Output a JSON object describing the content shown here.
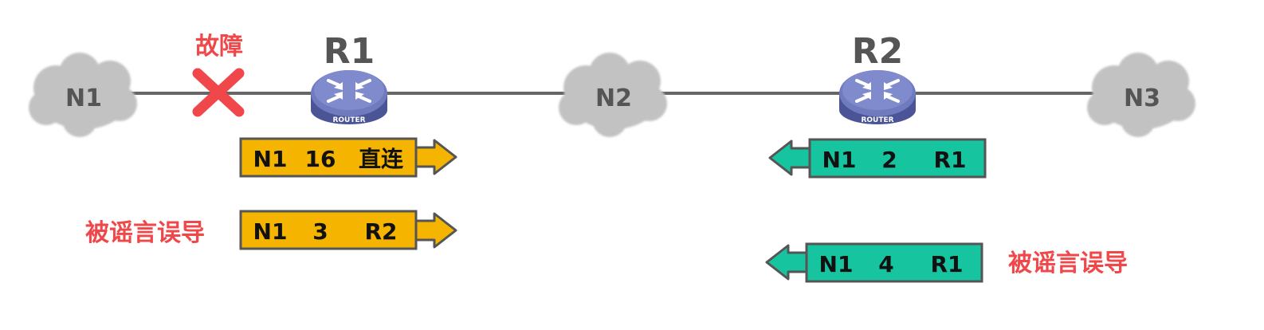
{
  "nodes": {
    "n1": "N1",
    "n2": "N2",
    "n3": "N3",
    "r1": "R1",
    "r2": "R2",
    "router_caption": "ROUTER"
  },
  "fault_label": "故障",
  "misled_label": "被谣言误导",
  "r1_tables": [
    {
      "network": "N1",
      "distance": "16",
      "next_hop": "直连"
    },
    {
      "network": "N1",
      "distance": "3",
      "next_hop": "R2"
    }
  ],
  "r2_tables": [
    {
      "network": "N1",
      "distance": "2",
      "next_hop": "R1"
    },
    {
      "network": "N1",
      "distance": "4",
      "next_hop": "R1"
    }
  ],
  "colors": {
    "line": "#666666",
    "cloud": "#c2c2c2",
    "router_body": "#5a63a6",
    "router_top": "#7a86c6",
    "fault_cross": "#f0484a",
    "r1_table_fill": "#f5b400",
    "r2_table_fill": "#17c4a0",
    "label_red": "#f0484a"
  }
}
